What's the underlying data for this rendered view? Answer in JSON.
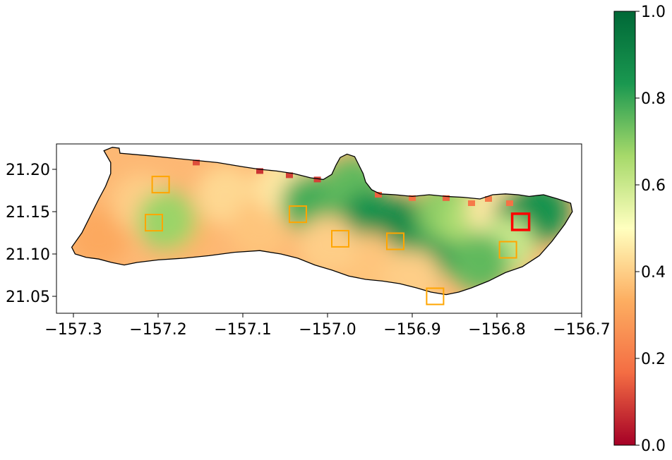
{
  "chart_data": {
    "type": "heatmap",
    "title": "",
    "xlabel": "",
    "ylabel": "",
    "xlim": [
      -157.32,
      -156.7
    ],
    "ylim": [
      21.03,
      21.23
    ],
    "x_ticks": [
      -157.3,
      -157.2,
      -157.1,
      -157.0,
      -156.9,
      -156.8,
      -156.7
    ],
    "x_tick_labels": [
      "−157.3",
      "−157.2",
      "−157.1",
      "−157.0",
      "−156.9",
      "−156.8",
      "−156.7"
    ],
    "y_ticks": [
      21.05,
      21.1,
      21.15,
      21.2
    ],
    "y_tick_labels": [
      "21.05",
      "21.10",
      "21.15",
      "21.20"
    ],
    "colorbar": {
      "colormap": "RdYlGn",
      "range": [
        0.0,
        1.0
      ],
      "ticks": [
        0.0,
        0.2,
        0.4,
        0.6,
        0.8,
        1.0
      ],
      "tick_labels": [
        "0.0",
        "0.2",
        "0.4",
        "0.6",
        "0.8",
        "1.0"
      ],
      "colors": [
        "#a50026",
        "#f46d43",
        "#fdae61",
        "#ffffbf",
        "#a6d96a",
        "#1a9850",
        "#006837"
      ]
    },
    "grid": false,
    "island_outline": [
      [
        -157.264,
        21.222
      ],
      [
        -157.254,
        21.226
      ],
      [
        -157.246,
        21.225
      ],
      [
        -157.245,
        21.219
      ],
      [
        -157.21,
        21.216
      ],
      [
        -157.17,
        21.212
      ],
      [
        -157.13,
        21.208
      ],
      [
        -157.1,
        21.203
      ],
      [
        -157.08,
        21.2
      ],
      [
        -157.06,
        21.198
      ],
      [
        -157.04,
        21.195
      ],
      [
        -157.02,
        21.19
      ],
      [
        -157.005,
        21.188
      ],
      [
        -156.995,
        21.194
      ],
      [
        -156.99,
        21.205
      ],
      [
        -156.985,
        21.214
      ],
      [
        -156.977,
        21.218
      ],
      [
        -156.968,
        21.215
      ],
      [
        -156.963,
        21.205
      ],
      [
        -156.958,
        21.195
      ],
      [
        -156.955,
        21.185
      ],
      [
        -156.948,
        21.176
      ],
      [
        -156.938,
        21.171
      ],
      [
        -156.92,
        21.17
      ],
      [
        -156.9,
        21.168
      ],
      [
        -156.88,
        21.17
      ],
      [
        -156.86,
        21.168
      ],
      [
        -156.84,
        21.167
      ],
      [
        -156.82,
        21.165
      ],
      [
        -156.805,
        21.17
      ],
      [
        -156.79,
        21.171
      ],
      [
        -156.775,
        21.17
      ],
      [
        -156.762,
        21.168
      ],
      [
        -156.745,
        21.17
      ],
      [
        -156.728,
        21.165
      ],
      [
        -156.713,
        21.16
      ],
      [
        -156.711,
        21.15
      ],
      [
        -156.72,
        21.135
      ],
      [
        -156.735,
        21.115
      ],
      [
        -156.75,
        21.098
      ],
      [
        -156.77,
        21.085
      ],
      [
        -156.79,
        21.078
      ],
      [
        -156.81,
        21.068
      ],
      [
        -156.83,
        21.06
      ],
      [
        -156.845,
        21.055
      ],
      [
        -156.86,
        21.052
      ],
      [
        -156.878,
        21.055
      ],
      [
        -156.895,
        21.06
      ],
      [
        -156.915,
        21.065
      ],
      [
        -156.935,
        21.068
      ],
      [
        -156.955,
        21.07
      ],
      [
        -156.975,
        21.074
      ],
      [
        -156.995,
        21.081
      ],
      [
        -157.015,
        21.087
      ],
      [
        -157.035,
        21.095
      ],
      [
        -157.055,
        21.1
      ],
      [
        -157.08,
        21.104
      ],
      [
        -157.11,
        21.102
      ],
      [
        -157.14,
        21.098
      ],
      [
        -157.17,
        21.095
      ],
      [
        -157.2,
        21.093
      ],
      [
        -157.225,
        21.09
      ],
      [
        -157.24,
        21.087
      ],
      [
        -157.255,
        21.09
      ],
      [
        -157.27,
        21.094
      ],
      [
        -157.285,
        21.096
      ],
      [
        -157.298,
        21.1
      ],
      [
        -157.302,
        21.108
      ],
      [
        -157.29,
        21.125
      ],
      [
        -157.28,
        21.145
      ],
      [
        -157.27,
        21.165
      ],
      [
        -157.262,
        21.18
      ],
      [
        -157.256,
        21.195
      ],
      [
        -157.256,
        21.208
      ],
      [
        -157.264,
        21.222
      ]
    ],
    "value_zones": [
      {
        "lon": -157.27,
        "lat": 21.12,
        "value": 0.32
      },
      {
        "lon": -157.22,
        "lat": 21.16,
        "value": 0.4
      },
      {
        "lon": -157.17,
        "lat": 21.13,
        "value": 0.35
      },
      {
        "lon": -157.19,
        "lat": 21.14,
        "value": 0.68
      },
      {
        "lon": -157.12,
        "lat": 21.17,
        "value": 0.42
      },
      {
        "lon": -157.08,
        "lat": 21.13,
        "value": 0.38
      },
      {
        "lon": -157.05,
        "lat": 21.18,
        "value": 0.45
      },
      {
        "lon": -157.02,
        "lat": 21.16,
        "value": 0.78
      },
      {
        "lon": -156.97,
        "lat": 21.18,
        "value": 0.75
      },
      {
        "lon": -156.95,
        "lat": 21.14,
        "value": 0.85
      },
      {
        "lon": -156.91,
        "lat": 21.13,
        "value": 0.88
      },
      {
        "lon": -156.88,
        "lat": 21.1,
        "value": 0.82
      },
      {
        "lon": -156.86,
        "lat": 21.15,
        "value": 0.7
      },
      {
        "lon": -156.83,
        "lat": 21.14,
        "value": 0.65
      },
      {
        "lon": -156.8,
        "lat": 21.15,
        "value": 0.45
      },
      {
        "lon": -156.77,
        "lat": 21.14,
        "value": 0.88
      },
      {
        "lon": -156.75,
        "lat": 21.15,
        "value": 0.85
      },
      {
        "lon": -156.79,
        "lat": 21.11,
        "value": 0.6
      },
      {
        "lon": -156.82,
        "lat": 21.09,
        "value": 0.75
      },
      {
        "lon": -156.95,
        "lat": 21.09,
        "value": 0.38
      },
      {
        "lon": -156.9,
        "lat": 21.07,
        "value": 0.4
      },
      {
        "lon": -157.0,
        "lat": 21.11,
        "value": 0.4
      }
    ],
    "coastal_low_value_patches": [
      {
        "lon": -157.08,
        "lat": 21.198,
        "value": 0.08
      },
      {
        "lon": -157.045,
        "lat": 21.193,
        "value": 0.1
      },
      {
        "lon": -157.012,
        "lat": 21.188,
        "value": 0.1
      },
      {
        "lon": -157.155,
        "lat": 21.208,
        "value": 0.12
      },
      {
        "lon": -156.94,
        "lat": 21.17,
        "value": 0.15
      },
      {
        "lon": -156.9,
        "lat": 21.166,
        "value": 0.18
      },
      {
        "lon": -156.86,
        "lat": 21.166,
        "value": 0.15
      },
      {
        "lon": -156.83,
        "lat": 21.16,
        "value": 0.2
      },
      {
        "lon": -156.81,
        "lat": 21.165,
        "value": 0.2
      },
      {
        "lon": -156.785,
        "lat": 21.16,
        "value": 0.18
      }
    ],
    "sample_boxes": [
      {
        "lon": -157.197,
        "lat": 21.182,
        "color": "#ffa500"
      },
      {
        "lon": -157.205,
        "lat": 21.137,
        "color": "#ffa500"
      },
      {
        "lon": -157.035,
        "lat": 21.147,
        "color": "#ffa500"
      },
      {
        "lon": -156.985,
        "lat": 21.118,
        "color": "#ffa500"
      },
      {
        "lon": -156.92,
        "lat": 21.115,
        "color": "#ffa500"
      },
      {
        "lon": -156.873,
        "lat": 21.05,
        "color": "#ffa500"
      },
      {
        "lon": -156.787,
        "lat": 21.105,
        "color": "#ffa500"
      },
      {
        "lon": -156.772,
        "lat": 21.138,
        "color": "#ff0000"
      }
    ]
  }
}
